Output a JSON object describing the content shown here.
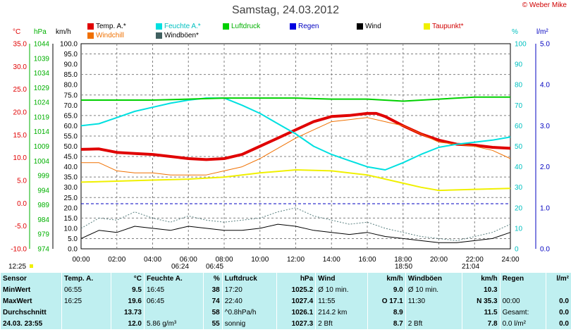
{
  "header": {
    "title": "Samstag, 24.03.2012",
    "credit": "© Weber Mike"
  },
  "units": {
    "temp": "°C",
    "pressure": "hPa",
    "wind": "km/h",
    "humidity": "%",
    "rain": "l/m²"
  },
  "legend": [
    {
      "label": "Temp. A.*",
      "color": "#e00000"
    },
    {
      "label": "Feuchte A.*",
      "color": "#00e0e0"
    },
    {
      "label": "Luftdruck",
      "color": "#00d000"
    },
    {
      "label": "Regen",
      "color": "#0000e0"
    },
    {
      "label": "Wind",
      "color": "#000000"
    },
    {
      "label": "Taupunkt*",
      "color": "#f0f000"
    },
    {
      "label": "Windchill",
      "color": "#f07000"
    },
    {
      "label": "Windböen*",
      "color": "#406060"
    }
  ],
  "colors": {
    "temp": "#e00000",
    "pressure": "#00b000",
    "humidity": "#00c0c0",
    "rain": "#0000c0",
    "grid": "#808080"
  },
  "chart_data": {
    "type": "line",
    "title": "Samstag, 24.03.2012",
    "x_ticks": [
      "00:00",
      "02:00",
      "04:00",
      "06:00",
      "08:00",
      "10:00",
      "12:00",
      "14:00",
      "16:00",
      "18:00",
      "20:00",
      "22:00",
      "24:00"
    ],
    "xlim": [
      0,
      24
    ],
    "axes": {
      "temp_ticks": [
        "35.0",
        "30.0",
        "25.0",
        "20.0",
        "15.0",
        "10.0",
        "5.0",
        "0.0",
        "-5.0",
        "-10.0"
      ],
      "pressure_ticks": [
        "1044",
        "1039",
        "1034",
        "1029",
        "1024",
        "1019",
        "1014",
        "1009",
        "1004",
        "999",
        "994",
        "989",
        "984",
        "979",
        "974"
      ],
      "wind_ticks": [
        "100.0",
        "95.0",
        "90.0",
        "85.0",
        "80.0",
        "75.0",
        "70.0",
        "65.0",
        "60.0",
        "55.0",
        "50.0",
        "45.0",
        "40.0",
        "35.0",
        "30.0",
        "25.0",
        "20.0",
        "15.0",
        "10.0",
        "5.0",
        "0.0"
      ],
      "humidity_ticks": [
        "100",
        "90",
        "80",
        "70",
        "60",
        "50",
        "40",
        "30",
        "20",
        "10",
        "0"
      ],
      "rain_ticks": [
        "5.0",
        "4.0",
        "3.0",
        "2.0",
        "1.0",
        "0.0"
      ]
    },
    "ylim_wind": [
      0,
      100
    ],
    "series": [
      {
        "name": "Temp. A.*",
        "color": "#e00000",
        "width": 4,
        "x": [
          0,
          1,
          2,
          3,
          4,
          5,
          6,
          7,
          8,
          9,
          10,
          11,
          12,
          13,
          14,
          15,
          16,
          16.5,
          17,
          18,
          19,
          20,
          21,
          22,
          23,
          24
        ],
        "y": [
          48.5,
          48.7,
          47,
          46.5,
          46,
          45,
          44,
          43.5,
          44,
          46,
          50,
          54,
          58,
          62,
          64.5,
          65,
          66,
          66,
          64.5,
          60,
          56,
          53,
          51,
          50.5,
          49.5,
          49
        ]
      },
      {
        "name": "Windchill",
        "color": "#f07000",
        "width": 1,
        "x": [
          0,
          1,
          2,
          3,
          4,
          5,
          6,
          7,
          8,
          9,
          10,
          11,
          12,
          13,
          14,
          15,
          16,
          17,
          18,
          19,
          20,
          21,
          22,
          23,
          24
        ],
        "y": [
          42,
          42,
          38,
          37,
          37,
          36,
          36,
          36,
          38,
          40,
          44,
          49,
          54,
          58,
          62,
          63,
          64,
          62,
          60,
          56,
          52,
          51,
          50,
          48,
          44
        ]
      },
      {
        "name": "Feuchte A.*",
        "color": "#00e0e0",
        "width": 2,
        "x": [
          0,
          1,
          2,
          3,
          4,
          5,
          6,
          7,
          8,
          9,
          10,
          11,
          12,
          13,
          14,
          15,
          16,
          17,
          18,
          19,
          20,
          21,
          22,
          23,
          24
        ],
        "y": [
          60,
          61,
          64,
          67,
          69,
          71,
          72.5,
          73.5,
          73.5,
          70,
          66,
          61,
          56,
          50,
          46,
          43,
          40,
          38.5,
          42,
          46,
          49.5,
          51,
          52,
          53,
          54.5
        ]
      },
      {
        "name": "Luftdruck",
        "color": "#00d000",
        "width": 2,
        "x": [
          0,
          2,
          4,
          6,
          8,
          10,
          12,
          14,
          16,
          18,
          20,
          22,
          24
        ],
        "y": [
          72.5,
          72.5,
          72.5,
          73,
          73.5,
          73.5,
          73.5,
          73,
          73,
          72,
          73,
          74,
          74
        ]
      },
      {
        "name": "Taupunkt*",
        "color": "#f0f000",
        "width": 2,
        "x": [
          0,
          2,
          4,
          6,
          8,
          10,
          12,
          14,
          16,
          18,
          19,
          20,
          22,
          24
        ],
        "y": [
          32.5,
          33,
          33.5,
          34,
          35,
          37,
          38.5,
          38,
          36,
          32,
          30,
          28.5,
          29,
          29.5
        ]
      },
      {
        "name": "Wind",
        "color": "#000000",
        "width": 1,
        "x": [
          0,
          1,
          2,
          3,
          4,
          5,
          6,
          7,
          8,
          9,
          10,
          11,
          12,
          13,
          14,
          15,
          16,
          17,
          18,
          19,
          20,
          21,
          22,
          23,
          24
        ],
        "y": [
          5,
          9,
          8,
          11,
          10,
          9,
          11,
          10,
          9,
          9,
          10,
          12,
          11,
          9,
          8,
          7,
          8,
          6,
          5,
          4,
          3,
          3,
          4,
          5,
          8
        ]
      },
      {
        "name": "Windböen*",
        "color": "#5a8080",
        "width": 1,
        "dash": "2,2",
        "x": [
          0,
          1,
          2,
          3,
          4,
          5,
          6,
          7,
          8,
          9,
          10,
          11,
          12,
          13,
          14,
          15,
          16,
          17,
          18,
          19,
          20,
          21,
          22,
          23,
          24
        ],
        "y": [
          10,
          15,
          14,
          18,
          15,
          13,
          16,
          14,
          13,
          14,
          15,
          18,
          20,
          16,
          14,
          12,
          13,
          10,
          8,
          6,
          5,
          4,
          6,
          8,
          12
        ]
      }
    ],
    "rain_ref_y": 22
  },
  "time_markers": {
    "left_clock": "12:25",
    "sunrise_left": "06:24",
    "sunrise_right": "06:45",
    "sunset_left": "18:50",
    "sunset_right": "21:04"
  },
  "stats": {
    "headers": [
      "Sensor",
      "Temp. A.",
      "°C",
      "Feuchte A.",
      "%",
      "Luftdruck",
      "hPa",
      "Wind",
      "km/h",
      "Windböen",
      "km/h",
      "Regen",
      "l/m²"
    ],
    "rows": [
      {
        "label": "MinWert",
        "c": [
          "06:55",
          "9.5",
          "16:45",
          "38",
          "17:20",
          "1025.2",
          "Ø 10 min.",
          "9.0",
          "Ø 10 min.",
          "10.3",
          "",
          ""
        ]
      },
      {
        "label": "MaxWert",
        "c": [
          "16:25",
          "19.6",
          "06:45",
          "74",
          "22:40",
          "1027.4",
          "11:55",
          "O 17.1",
          "11:30",
          "N 35.3",
          "00:00",
          "0.0"
        ]
      },
      {
        "label": "Durchschnitt",
        "c": [
          "",
          "13.73",
          "",
          "58",
          "^0.8hPa/h",
          "1026.1",
          "214.2 km",
          "8.9",
          "",
          "11.5",
          "Gesamt:",
          "0.0"
        ]
      },
      {
        "label": "24.03. 23:55",
        "c": [
          "",
          "12.0",
          "5.86 g/m³",
          "55",
          "sonnig",
          "1027.3",
          "2 Bft",
          "8.7",
          "2 Bft",
          "7.8",
          "0.0 l/m²",
          "0.0"
        ]
      }
    ]
  }
}
